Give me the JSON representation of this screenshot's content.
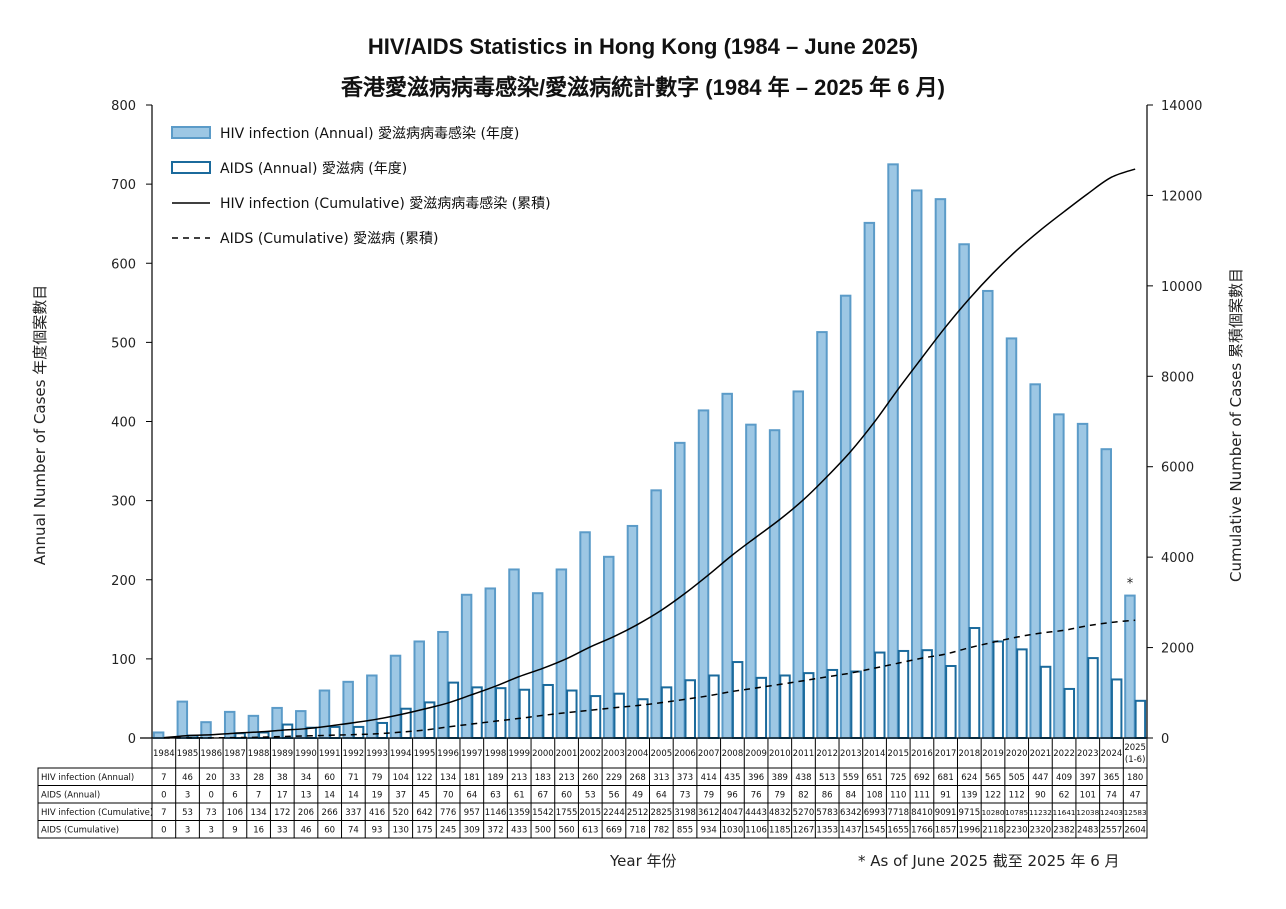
{
  "title_en": "HIV/AIDS Statistics in Hong Kong (1984 – June 2025)",
  "title_zh": "香港愛滋病病毒感染/愛滋病統計數字 (1984 年 – 2025 年 6 月)",
  "colors": {
    "hiv_bar_fill": "#9dc7e4",
    "hiv_bar_stroke": "#5b9bc8",
    "aids_bar_stroke": "#1b6a9c",
    "line": "#000000"
  },
  "chart_data": {
    "type": "bar",
    "title": "HIV/AIDS Statistics in Hong Kong (1984 – June 2025)",
    "subtitle": "香港愛滋病病毒感染/愛滋病統計數字 (1984 年 – 2025 年 6 月)",
    "xlabel": "Year  年份",
    "ylabel": "Annual Number of Cases  年度個案數目",
    "y2label": "Cumulative Number of Cases  累積個案數目",
    "ylim": [
      0,
      800
    ],
    "y2lim": [
      0,
      14000
    ],
    "yticks": [
      0,
      100,
      200,
      300,
      400,
      500,
      600,
      700,
      800
    ],
    "y2ticks": [
      0,
      2000,
      4000,
      6000,
      8000,
      10000,
      12000,
      14000
    ],
    "grid": false,
    "legend_position": "top-left",
    "categories": [
      "1984",
      "1985",
      "1986",
      "1987",
      "1988",
      "1989",
      "1990",
      "1991",
      "1992",
      "1993",
      "1994",
      "1995",
      "1996",
      "1997",
      "1998",
      "1999",
      "2000",
      "2001",
      "2002",
      "2003",
      "2004",
      "2005",
      "2006",
      "2007",
      "2008",
      "2009",
      "2010",
      "2011",
      "2012",
      "2013",
      "2014",
      "2015",
      "2016",
      "2017",
      "2018",
      "2019",
      "2020",
      "2021",
      "2022",
      "2023",
      "2024",
      "2025 (1-6)"
    ],
    "category_display": [
      [
        "1984"
      ],
      [
        "1985"
      ],
      [
        "1986"
      ],
      [
        "1987"
      ],
      [
        "1988"
      ],
      [
        "1989"
      ],
      [
        "1990"
      ],
      [
        "1991"
      ],
      [
        "1992"
      ],
      [
        "1993"
      ],
      [
        "1994"
      ],
      [
        "1995"
      ],
      [
        "1996"
      ],
      [
        "1997"
      ],
      [
        "1998"
      ],
      [
        "1999"
      ],
      [
        "2000"
      ],
      [
        "2001"
      ],
      [
        "2002"
      ],
      [
        "2003"
      ],
      [
        "2004"
      ],
      [
        "2005"
      ],
      [
        "2006"
      ],
      [
        "2007"
      ],
      [
        "2008"
      ],
      [
        "2009"
      ],
      [
        "2010"
      ],
      [
        "2011"
      ],
      [
        "2012"
      ],
      [
        "2013"
      ],
      [
        "2014"
      ],
      [
        "2015"
      ],
      [
        "2016"
      ],
      [
        "2017"
      ],
      [
        "2018"
      ],
      [
        "2019"
      ],
      [
        "2020"
      ],
      [
        "2021"
      ],
      [
        "2022"
      ],
      [
        "2023"
      ],
      [
        "2024"
      ],
      [
        "2025",
        "(1-6)"
      ]
    ],
    "series": [
      {
        "name": "HIV infection (Annual)",
        "legend": "HIV infection (Annual)  愛滋病病毒感染 (年度)",
        "table_label": "HIV infection (Annual)",
        "kind": "bar",
        "axis": "left",
        "values": [
          7,
          46,
          20,
          33,
          28,
          38,
          34,
          60,
          71,
          79,
          104,
          122,
          134,
          181,
          189,
          213,
          183,
          213,
          260,
          229,
          268,
          313,
          373,
          414,
          435,
          396,
          389,
          438,
          513,
          559,
          651,
          725,
          692,
          681,
          624,
          565,
          505,
          447,
          409,
          397,
          365,
          180
        ]
      },
      {
        "name": "AIDS (Annual)",
        "legend": "AIDS (Annual)  愛滋病 (年度)",
        "table_label": "AIDS (Annual)",
        "kind": "bar-outline",
        "axis": "left",
        "values": [
          0,
          3,
          0,
          6,
          7,
          17,
          13,
          14,
          14,
          19,
          37,
          45,
          70,
          64,
          63,
          61,
          67,
          60,
          53,
          56,
          49,
          64,
          73,
          79,
          96,
          76,
          79,
          82,
          86,
          84,
          108,
          110,
          111,
          91,
          139,
          122,
          112,
          90,
          62,
          101,
          74,
          47
        ]
      },
      {
        "name": "HIV infection (Cumulative)",
        "legend": "HIV infection (Cumulative)  愛滋病病毒感染 (累積)",
        "table_label": "HIV infection (Cumulative)",
        "kind": "line",
        "axis": "right",
        "values": [
          7,
          53,
          73,
          106,
          134,
          172,
          206,
          266,
          337,
          416,
          520,
          642,
          776,
          957,
          1146,
          1359,
          1542,
          1755,
          2015,
          2244,
          2512,
          2825,
          3198,
          3612,
          4047,
          4443,
          4832,
          5270,
          5783,
          6342,
          6993,
          7718,
          8410,
          9091,
          9715,
          10280,
          10785,
          11232,
          11641,
          12038,
          12403,
          12583
        ]
      },
      {
        "name": "AIDS (Cumulative)",
        "legend": "AIDS (Cumulative)  愛滋病 (累積)",
        "table_label": "AIDS (Cumulative)",
        "kind": "line-dashed",
        "axis": "right",
        "values": [
          0,
          3,
          3,
          9,
          16,
          33,
          46,
          60,
          74,
          93,
          130,
          175,
          245,
          309,
          372,
          433,
          500,
          560,
          613,
          669,
          718,
          782,
          855,
          934,
          1030,
          1106,
          1185,
          1267,
          1353,
          1437,
          1545,
          1655,
          1766,
          1857,
          1996,
          2118,
          2230,
          2320,
          2382,
          2483,
          2557,
          2604
        ]
      }
    ],
    "annotations": [
      {
        "text": "*",
        "category": "2025 (1-6)",
        "note": "As of June 2025"
      }
    ],
    "footnote": "* As of June 2025  截至 2025 年 6 月"
  }
}
